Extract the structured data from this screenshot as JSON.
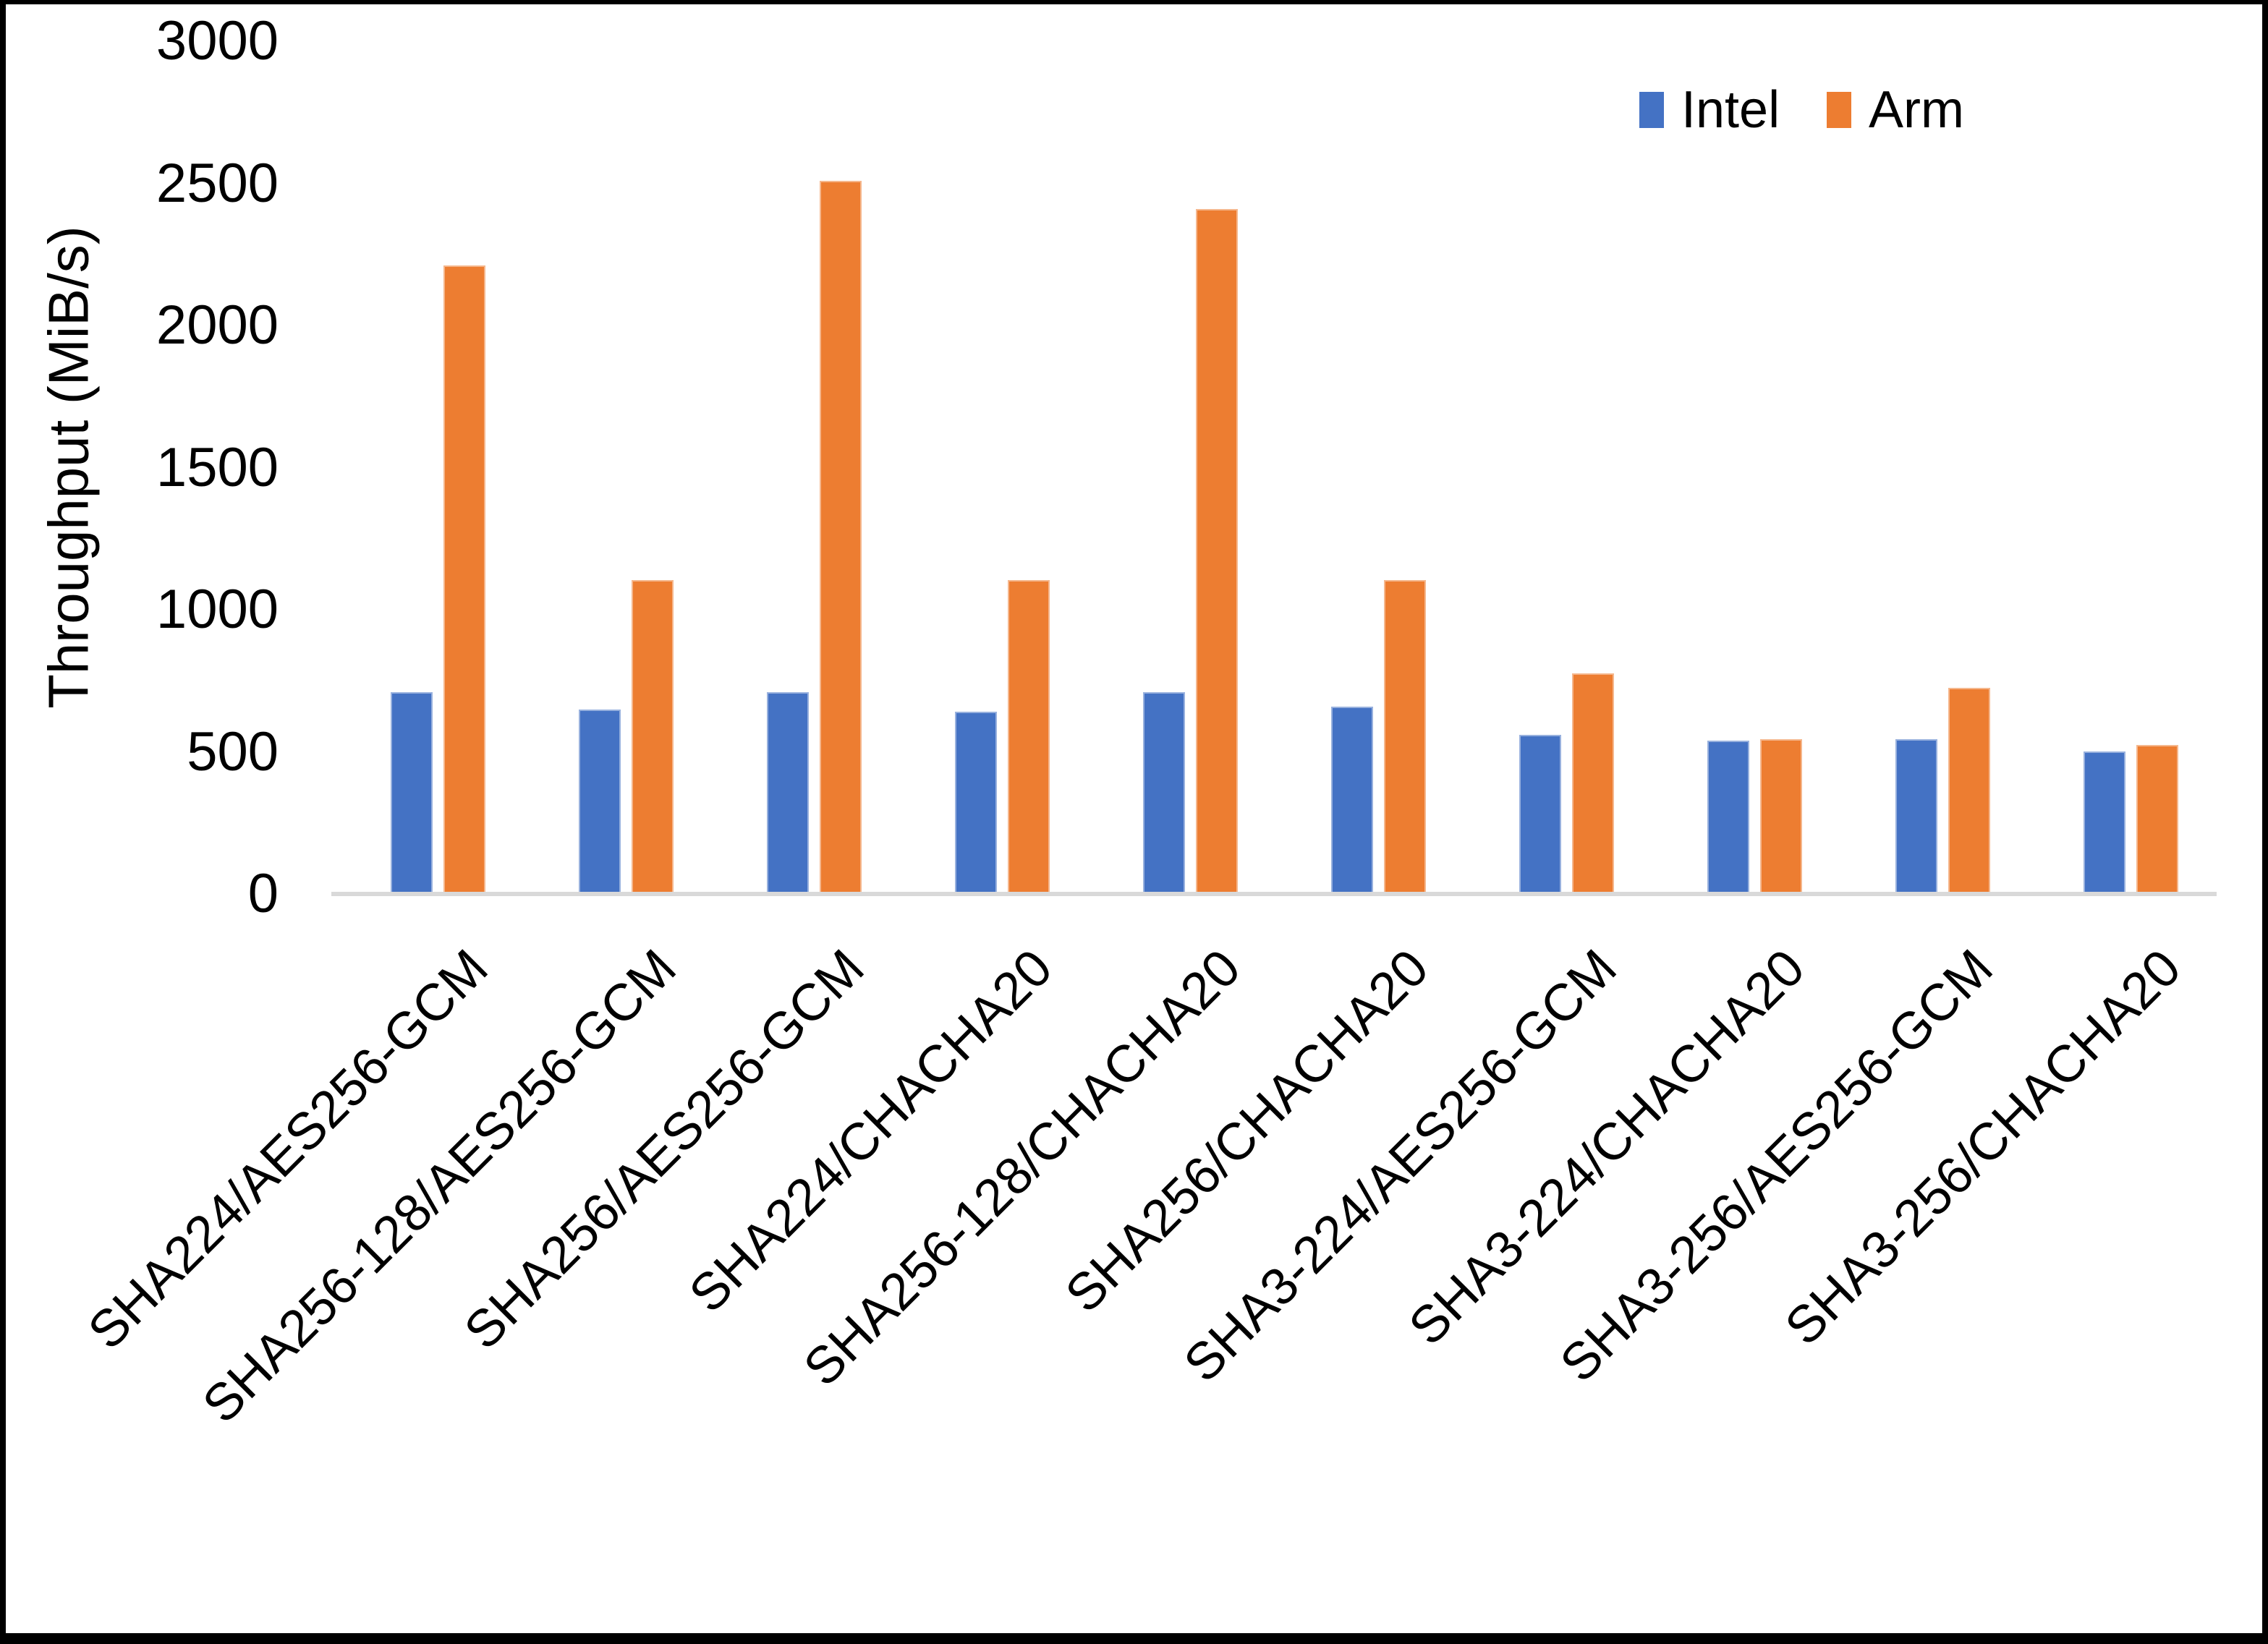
{
  "figure": {
    "kind": "bar-chart-figure"
  },
  "legend": {
    "items": [
      {
        "label": "Intel",
        "color": "#4472C4"
      },
      {
        "label": "Arm",
        "color": "#ED7D31"
      }
    ]
  },
  "y_axis": {
    "title": "Throughput (MiB/s)",
    "tick_labels": [
      "3000",
      "2500",
      "2000",
      "1500",
      "1000",
      "500",
      "0"
    ]
  },
  "chart_data": {
    "type": "bar",
    "title": "",
    "xlabel": "",
    "ylabel": "Throughput (MiB/s)",
    "ylim": [
      0,
      3000
    ],
    "ytick_interval": 500,
    "grid": false,
    "legend_position": "top-right",
    "axis_line_color": "#D9D9D9",
    "categories": [
      "SHA224/AES256-GCM",
      "SHA256-128/AES256-GCM",
      "SHA256/AES256-GCM",
      "SHA224/CHACHA20",
      "SHA256-128/CHACHA20",
      "SHA256/CHACHA20",
      "SHA3-224/AES256-GCM",
      "SHA3-224/CHACHA20",
      "SHA3-256/AES256-GCM",
      "SHA3-256/CHACHA20"
    ],
    "series": [
      {
        "name": "Intel",
        "color": "#4472C4",
        "values": [
          710,
          650,
          710,
          640,
          710,
          660,
          560,
          540,
          545,
          500
        ]
      },
      {
        "name": "Arm",
        "color": "#ED7D31",
        "values": [
          2210,
          1105,
          2510,
          1105,
          2410,
          1105,
          775,
          545,
          725,
          525
        ]
      }
    ]
  }
}
